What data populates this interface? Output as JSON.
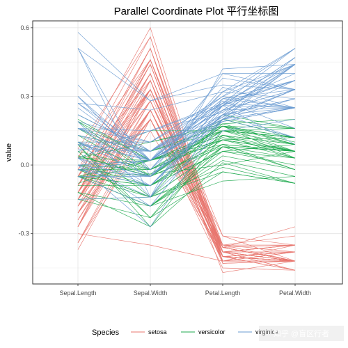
{
  "chart_data": {
    "type": "line",
    "title": "Parallel Coordinate Plot 平行坐标图",
    "xlabel": "",
    "ylabel": "value",
    "categories": [
      "Sepal.Length",
      "Sepal.Width",
      "Petal.Length",
      "Petal.Width"
    ],
    "ylim": [
      -0.52,
      0.63
    ],
    "yticks": [
      {
        "value": 0.6,
        "label": "0.6"
      },
      {
        "value": 0.3,
        "label": "0.3"
      },
      {
        "value": 0.0,
        "label": "0.0"
      },
      {
        "value": -0.3,
        "label": "-0.3"
      }
    ],
    "grid": true,
    "legend": {
      "title": "Species",
      "position": "bottom",
      "items": [
        {
          "name": "setosa",
          "color": "#E8776F"
        },
        {
          "name": "versicolor",
          "color": "#1FAA4F"
        },
        {
          "name": "virginica",
          "color": "#6A9BD1"
        }
      ]
    },
    "series": [
      {
        "name": "setosa",
        "color": "#E8776F",
        "lines": [
          [
            -0.12,
            0.4,
            -0.4,
            -0.42
          ],
          [
            -0.18,
            0.2,
            -0.4,
            -0.42
          ],
          [
            -0.24,
            0.28,
            -0.42,
            -0.42
          ],
          [
            -0.27,
            0.24,
            -0.38,
            -0.42
          ],
          [
            -0.15,
            0.44,
            -0.4,
            -0.42
          ],
          [
            -0.05,
            0.51,
            -0.35,
            -0.35
          ],
          [
            -0.27,
            0.33,
            -0.4,
            -0.38
          ],
          [
            -0.15,
            0.33,
            -0.38,
            -0.42
          ],
          [
            -0.34,
            0.15,
            -0.4,
            -0.42
          ],
          [
            -0.18,
            0.24,
            -0.38,
            -0.46
          ],
          [
            -0.05,
            0.46,
            -0.38,
            -0.42
          ],
          [
            -0.21,
            0.33,
            -0.36,
            -0.42
          ],
          [
            -0.21,
            0.2,
            -0.4,
            -0.46
          ],
          [
            -0.37,
            0.2,
            -0.45,
            -0.46
          ],
          [
            0.07,
            0.56,
            -0.43,
            -0.42
          ],
          [
            0.03,
            0.6,
            -0.38,
            -0.35
          ],
          [
            -0.05,
            0.51,
            -0.42,
            -0.35
          ],
          [
            -0.12,
            0.4,
            -0.4,
            -0.38
          ],
          [
            0.03,
            0.46,
            -0.35,
            -0.38
          ],
          [
            -0.12,
            0.46,
            -0.38,
            -0.38
          ],
          [
            -0.05,
            0.33,
            -0.35,
            -0.42
          ],
          [
            -0.12,
            0.44,
            -0.38,
            -0.35
          ],
          [
            -0.27,
            0.37,
            -0.47,
            -0.42
          ],
          [
            -0.12,
            0.28,
            -0.35,
            -0.31
          ],
          [
            -0.21,
            0.33,
            -0.31,
            -0.42
          ],
          [
            -0.15,
            0.2,
            -0.36,
            -0.42
          ],
          [
            -0.15,
            0.33,
            -0.36,
            -0.35
          ],
          [
            -0.09,
            0.4,
            -0.38,
            -0.42
          ],
          [
            -0.09,
            0.33,
            -0.4,
            -0.42
          ],
          [
            -0.24,
            0.24,
            -0.36,
            -0.42
          ],
          [
            -0.21,
            0.24,
            -0.36,
            -0.42
          ],
          [
            -0.05,
            0.33,
            -0.38,
            -0.35
          ],
          [
            -0.09,
            0.51,
            -0.38,
            -0.46
          ],
          [
            -0.02,
            0.56,
            -0.4,
            -0.42
          ],
          [
            -0.18,
            0.24,
            -0.38,
            -0.42
          ],
          [
            -0.15,
            0.28,
            -0.43,
            -0.42
          ],
          [
            -0.02,
            0.37,
            -0.42,
            -0.42
          ],
          [
            -0.18,
            0.4,
            -0.4,
            -0.46
          ],
          [
            -0.34,
            0.2,
            -0.42,
            -0.42
          ],
          [
            -0.12,
            0.33,
            -0.38,
            -0.42
          ],
          [
            -0.15,
            0.37,
            -0.42,
            -0.38
          ],
          [
            -0.3,
            -0.35,
            -0.42,
            -0.38
          ],
          [
            -0.34,
            0.24,
            -0.42,
            -0.42
          ],
          [
            -0.15,
            0.37,
            -0.36,
            -0.27
          ],
          [
            -0.12,
            0.46,
            -0.31,
            -0.35
          ],
          [
            -0.21,
            0.2,
            -0.4,
            -0.38
          ],
          [
            -0.12,
            0.46,
            -0.36,
            -0.42
          ],
          [
            -0.27,
            0.28,
            -0.4,
            -0.42
          ],
          [
            -0.09,
            0.44,
            -0.38,
            -0.42
          ],
          [
            -0.15,
            0.31,
            -0.4,
            -0.42
          ]
        ]
      },
      {
        "name": "versicolor",
        "color": "#1FAA4F",
        "lines": [
          [
            0.22,
            0.06,
            0.17,
            0.1
          ],
          [
            0.13,
            0.06,
            0.15,
            0.12
          ],
          [
            0.2,
            0.02,
            0.2,
            0.12
          ],
          [
            -0.05,
            -0.18,
            0.08,
            0.06
          ],
          [
            0.13,
            -0.05,
            0.17,
            0.12
          ],
          [
            -0.02,
            -0.05,
            0.15,
            0.06
          ],
          [
            0.1,
            0.1,
            0.17,
            0.16
          ],
          [
            -0.15,
            -0.14,
            -0.03,
            -0.08
          ],
          [
            0.16,
            -0.02,
            0.17,
            0.06
          ],
          [
            -0.09,
            -0.09,
            0.06,
            0.09
          ],
          [
            -0.12,
            -0.27,
            0.01,
            -0.08
          ],
          [
            0.03,
            0.02,
            0.11,
            0.12
          ],
          [
            0.06,
            -0.23,
            0.08,
            -0.02
          ],
          [
            0.04,
            -0.04,
            0.17,
            0.09
          ],
          [
            -0.05,
            -0.04,
            0.0,
            0.06
          ],
          [
            0.19,
            0.02,
            0.13,
            0.09
          ],
          [
            -0.05,
            0.02,
            0.15,
            0.12
          ],
          [
            -0.02,
            -0.09,
            0.09,
            -0.02
          ],
          [
            0.09,
            -0.23,
            0.15,
            0.12
          ],
          [
            -0.05,
            -0.18,
            0.06,
            0.0
          ],
          [
            0.03,
            0.1,
            0.18,
            0.2
          ],
          [
            0.04,
            -0.05,
            0.08,
            0.06
          ],
          [
            0.1,
            -0.14,
            0.2,
            0.12
          ],
          [
            0.04,
            -0.05,
            0.17,
            0.03
          ],
          [
            0.1,
            -0.02,
            0.11,
            0.06
          ],
          [
            0.16,
            0.02,
            0.13,
            0.09
          ],
          [
            0.19,
            -0.05,
            0.18,
            0.09
          ],
          [
            0.16,
            0.02,
            0.2,
            0.16
          ],
          [
            0.0,
            -0.02,
            0.15,
            0.12
          ],
          [
            -0.02,
            -0.14,
            -0.01,
            -0.08
          ],
          [
            -0.05,
            -0.18,
            0.04,
            -0.02
          ],
          [
            -0.05,
            -0.18,
            0.02,
            -0.05
          ],
          [
            -0.02,
            -0.09,
            0.06,
            0.03
          ],
          [
            0.0,
            -0.09,
            0.22,
            0.16
          ],
          [
            -0.08,
            0.02,
            0.15,
            0.12
          ],
          [
            0.03,
            0.15,
            0.15,
            0.16
          ],
          [
            0.16,
            0.06,
            0.17,
            0.12
          ],
          [
            0.09,
            -0.27,
            0.13,
            0.06
          ],
          [
            -0.05,
            0.02,
            0.09,
            0.06
          ],
          [
            -0.05,
            -0.14,
            0.08,
            0.06
          ],
          [
            -0.05,
            -0.09,
            0.13,
            0.03
          ],
          [
            0.0,
            0.02,
            0.15,
            0.09
          ],
          [
            -0.02,
            -0.14,
            0.08,
            0.03
          ],
          [
            -0.15,
            -0.23,
            -0.03,
            -0.08
          ],
          [
            -0.05,
            -0.09,
            0.11,
            0.06
          ],
          [
            -0.02,
            0.02,
            0.11,
            0.03
          ],
          [
            -0.02,
            -0.02,
            0.11,
            0.06
          ],
          [
            0.06,
            -0.02,
            0.12,
            0.06
          ],
          [
            -0.12,
            -0.18,
            -0.07,
            -0.05
          ],
          [
            -0.02,
            -0.05,
            0.09,
            0.06
          ]
        ]
      },
      {
        "name": "virginica",
        "color": "#6A9BD1",
        "lines": [
          [
            0.1,
            0.1,
            0.3,
            0.51
          ],
          [
            -0.02,
            -0.09,
            0.22,
            0.29
          ],
          [
            0.25,
            0.02,
            0.29,
            0.33
          ],
          [
            0.1,
            -0.02,
            0.27,
            0.25
          ],
          [
            0.13,
            0.02,
            0.29,
            0.37
          ],
          [
            0.35,
            0.02,
            0.38,
            0.33
          ],
          [
            -0.15,
            -0.14,
            0.15,
            0.2
          ],
          [
            0.3,
            -0.02,
            0.34,
            0.25
          ],
          [
            0.19,
            -0.14,
            0.29,
            0.25
          ],
          [
            0.27,
            0.24,
            0.32,
            0.51
          ],
          [
            0.13,
            0.06,
            0.22,
            0.37
          ],
          [
            0.09,
            -0.09,
            0.24,
            0.33
          ],
          [
            0.16,
            0.02,
            0.26,
            0.37
          ],
          [
            -0.05,
            -0.18,
            0.2,
            0.33
          ],
          [
            -0.02,
            -0.05,
            0.22,
            0.47
          ],
          [
            0.09,
            0.06,
            0.24,
            0.44
          ],
          [
            0.1,
            0.02,
            0.26,
            0.25
          ],
          [
            0.51,
            0.28,
            0.4,
            0.4
          ],
          [
            0.51,
            -0.14,
            0.42,
            0.44
          ],
          [
            0.0,
            -0.27,
            0.2,
            0.12
          ],
          [
            0.22,
            0.06,
            0.27,
            0.44
          ],
          [
            -0.05,
            -0.05,
            0.2,
            0.33
          ],
          [
            0.51,
            -0.05,
            0.4,
            0.33
          ],
          [
            0.03,
            -0.09,
            0.2,
            0.25
          ],
          [
            0.16,
            0.1,
            0.27,
            0.37
          ],
          [
            0.27,
            0.06,
            0.3,
            0.25
          ],
          [
            0.0,
            -0.05,
            0.19,
            0.25
          ],
          [
            -0.02,
            0.02,
            0.2,
            0.25
          ],
          [
            0.1,
            -0.05,
            0.26,
            0.37
          ],
          [
            0.27,
            0.02,
            0.28,
            0.16
          ],
          [
            0.3,
            -0.02,
            0.32,
            0.29
          ],
          [
            0.58,
            0.28,
            0.35,
            0.33
          ],
          [
            0.1,
            -0.05,
            0.26,
            0.4
          ],
          [
            0.03,
            -0.05,
            0.22,
            0.12
          ],
          [
            0.0,
            -0.14,
            0.26,
            0.09
          ],
          [
            0.3,
            0.02,
            0.32,
            0.44
          ],
          [
            0.03,
            0.15,
            0.26,
            0.47
          ],
          [
            0.07,
            0.06,
            0.24,
            0.25
          ],
          [
            -0.02,
            0.02,
            0.19,
            0.25
          ],
          [
            0.22,
            0.06,
            0.24,
            0.33
          ],
          [
            0.16,
            0.06,
            0.26,
            0.47
          ],
          [
            0.22,
            0.06,
            0.2,
            0.44
          ],
          [
            -0.02,
            -0.09,
            0.22,
            0.29
          ],
          [
            0.19,
            0.1,
            0.3,
            0.44
          ],
          [
            0.16,
            0.15,
            0.27,
            0.51
          ],
          [
            0.16,
            0.02,
            0.21,
            0.44
          ],
          [
            0.03,
            -0.18,
            0.2,
            0.29
          ],
          [
            0.09,
            0.02,
            0.21,
            0.33
          ],
          [
            0.06,
            0.15,
            0.23,
            0.44
          ],
          [
            0.0,
            0.02,
            0.22,
            0.25
          ]
        ]
      }
    ]
  },
  "watermark": {
    "text": "知乎 @盲区行者"
  }
}
